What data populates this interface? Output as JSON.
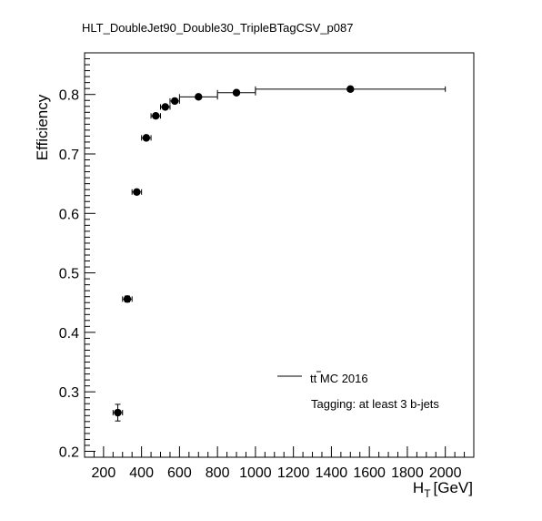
{
  "chart_data": {
    "type": "scatter",
    "title": "HLT_DoubleJet90_Double30_TripleBTagCSV_p087",
    "xlabel_main": "H",
    "xlabel_sub": "T",
    "xlabel_unit": "[GeV]",
    "ylabel": "Efficiency",
    "xlim": [
      100,
      2150
    ],
    "ylim": [
      0.19,
      0.87
    ],
    "xticks": [
      200,
      400,
      600,
      800,
      1000,
      1200,
      1400,
      1600,
      1800,
      2000
    ],
    "yticks": [
      0.2,
      0.3,
      0.4,
      0.5,
      0.6,
      0.7,
      0.8
    ],
    "grid": false,
    "legend": {
      "position": "bottom-right",
      "entry_label_main": "t",
      "entry_label_bar": "t",
      "entry_label_rest": " MC 2016",
      "annotation": "Tagging: at least 3 b-jets"
    },
    "series": [
      {
        "points": [
          {
            "x": 275,
            "y": 0.265,
            "xlow": 250,
            "xhigh": 300,
            "ylow": 0.251,
            "yhigh": 0.279
          },
          {
            "x": 325,
            "y": 0.456,
            "xlow": 300,
            "xhigh": 350,
            "ylow": 0.451,
            "yhigh": 0.461
          },
          {
            "x": 375,
            "y": 0.636,
            "xlow": 350,
            "xhigh": 400,
            "ylow": 0.633,
            "yhigh": 0.639
          },
          {
            "x": 425,
            "y": 0.727,
            "xlow": 400,
            "xhigh": 450,
            "ylow": 0.725,
            "yhigh": 0.729
          },
          {
            "x": 475,
            "y": 0.764,
            "xlow": 450,
            "xhigh": 500,
            "ylow": 0.762,
            "yhigh": 0.766
          },
          {
            "x": 525,
            "y": 0.779,
            "xlow": 500,
            "xhigh": 550,
            "ylow": 0.777,
            "yhigh": 0.781
          },
          {
            "x": 575,
            "y": 0.789,
            "xlow": 550,
            "xhigh": 600,
            "ylow": 0.787,
            "yhigh": 0.791
          },
          {
            "x": 700,
            "y": 0.796,
            "xlow": 600,
            "xhigh": 800,
            "ylow": 0.794,
            "yhigh": 0.798
          },
          {
            "x": 900,
            "y": 0.803,
            "xlow": 800,
            "xhigh": 1000,
            "ylow": 0.801,
            "yhigh": 0.805
          },
          {
            "x": 1500,
            "y": 0.809,
            "xlow": 1000,
            "xhigh": 2000,
            "ylow": 0.807,
            "yhigh": 0.811
          }
        ]
      }
    ]
  }
}
